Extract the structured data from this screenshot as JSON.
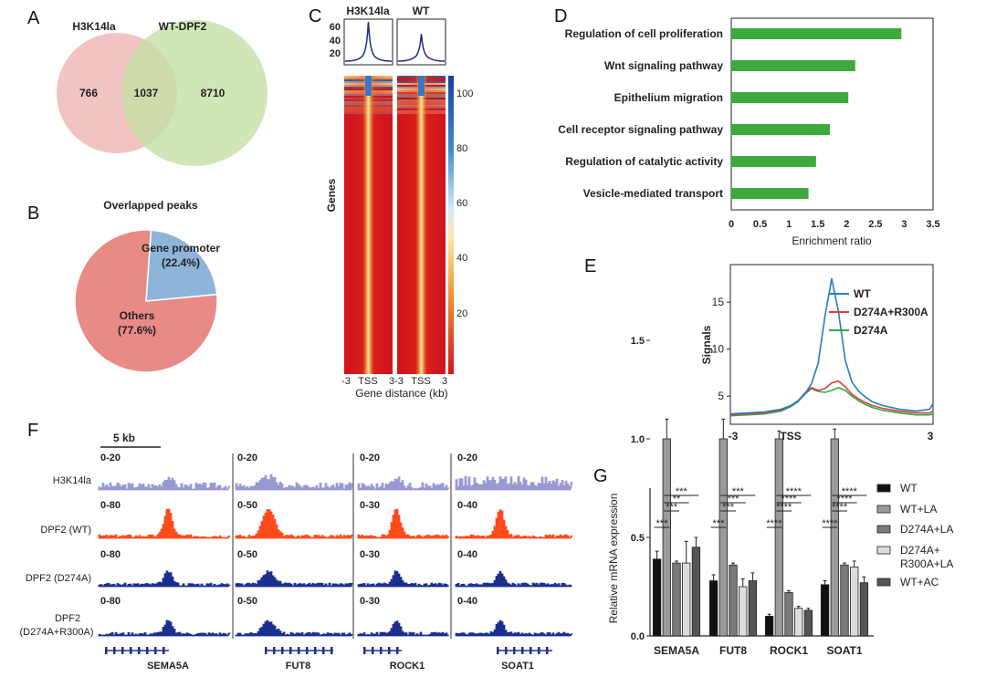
{
  "panels": {
    "A": "A",
    "B": "B",
    "C": "C",
    "D": "D",
    "E": "E",
    "F": "F",
    "G": "G"
  },
  "colors": {
    "venn_h3k14la": "#f0b8b8",
    "venn_wtdpf2": "#c5e0a5",
    "pie_promoter": "#8fb4d9",
    "pie_others": "#e88a86",
    "d_bar": "#3caa3c",
    "e_wt": "#1f7fc4",
    "e_d274a_r300a": "#e23b3b",
    "e_d274a": "#2ea84a",
    "f_h3k14la": "#9a98d2",
    "f_dpf2_wt": "#ff4a1c",
    "f_dpf2_mut": "#1a2f8f"
  },
  "chart_data": [
    {
      "panel": "A",
      "type": "venn",
      "sets": [
        "H3K14la",
        "WT-DPF2"
      ],
      "only_a": "766",
      "overlap": "1037",
      "only_b": "8710"
    },
    {
      "panel": "B",
      "type": "pie",
      "title": "Overlapped peaks",
      "slices": [
        {
          "label": "Gene promoter",
          "pct_label": "(22.4%)",
          "value": 22.4
        },
        {
          "label": "Others",
          "pct_label": "(77.6%)",
          "value": 77.6
        }
      ]
    },
    {
      "panel": "C",
      "type": "heatmap",
      "columns": [
        "H3K14la",
        "WT"
      ],
      "profile_yticks": [
        "60",
        "40",
        "20"
      ],
      "ylabel": "Genes",
      "xticks": [
        "-3",
        "TSS",
        "3"
      ],
      "xlabel": "Gene distance (kb)",
      "colorbar_ticks": [
        "100",
        "80",
        "60",
        "40",
        "20"
      ],
      "profile_peaks": [
        60,
        43
      ]
    },
    {
      "panel": "D",
      "type": "bar",
      "orientation": "horizontal",
      "categories": [
        "Regulation of cell proliferation",
        "Wnt signaling pathway",
        "Epithelium migration",
        "Cell receptor signaling pathway",
        "Regulation of catalytic activity",
        "Vesicle-mediated transport"
      ],
      "values": [
        2.95,
        2.15,
        2.03,
        1.71,
        1.47,
        1.34
      ],
      "xlabel": "Enrichment ratio",
      "xlim": [
        0,
        3.5
      ],
      "xticks": [
        "0",
        "0.5",
        "1",
        "1.5",
        "2",
        "2.5",
        "3",
        "3.5"
      ]
    },
    {
      "panel": "E",
      "type": "line",
      "ylabel": "Signals",
      "xticks": [
        "-3",
        "TSS",
        "3"
      ],
      "yticks": [
        "15",
        "10",
        "5"
      ],
      "ylim": [
        2,
        19
      ],
      "xlim": [
        -3,
        3
      ],
      "legend": "top-right",
      "x": [
        -3,
        -2.5,
        -2,
        -1.5,
        -1.2,
        -1,
        -0.8,
        -0.6,
        -0.4,
        -0.2,
        0,
        0.2,
        0.4,
        0.6,
        0.8,
        1,
        1.2,
        1.5,
        2,
        2.5,
        2.9,
        3
      ],
      "series": [
        {
          "name": "WT",
          "values": [
            3.1,
            3.2,
            3.3,
            3.6,
            4.0,
            4.5,
            5.2,
            6.3,
            8.5,
            13.5,
            17.5,
            14.0,
            8.8,
            6.5,
            5.5,
            4.9,
            4.4,
            4.0,
            3.6,
            3.4,
            3.6,
            4.2
          ]
        },
        {
          "name": "D274A+R300A",
          "values": [
            3.0,
            3.1,
            3.2,
            3.5,
            4.0,
            4.5,
            5.3,
            5.9,
            5.6,
            5.8,
            6.4,
            6.6,
            6.0,
            5.2,
            4.7,
            4.3,
            4.0,
            3.7,
            3.4,
            3.2,
            3.2,
            3.4
          ]
        },
        {
          "name": "D274A",
          "values": [
            2.9,
            3.0,
            3.1,
            3.4,
            3.9,
            4.4,
            5.2,
            5.8,
            5.5,
            5.4,
            5.6,
            5.9,
            5.6,
            5.0,
            4.5,
            4.1,
            3.8,
            3.5,
            3.2,
            3.0,
            3.0,
            3.1
          ]
        }
      ]
    },
    {
      "panel": "F",
      "type": "genome-tracks",
      "scale_bar": "5 kb",
      "tracks": [
        "H3K14la",
        "DPF2 (WT)",
        "DPF2 (D274A)",
        "DPF2",
        "(D274A+R300A)"
      ],
      "genes": [
        "SEMA5A",
        "FUT8",
        "ROCK1",
        "SOAT1"
      ],
      "ranges": [
        [
          "0-20",
          "0-80",
          "0-80",
          "0-80"
        ],
        [
          "0-20",
          "0-50",
          "0-50",
          "0-50"
        ],
        [
          "0-20",
          "0-30",
          "0-30",
          "0-30"
        ],
        [
          "0-20",
          "0-40",
          "0-40",
          "0-40"
        ]
      ]
    },
    {
      "panel": "G",
      "type": "bar",
      "ylabel": "Relative mRNA expression",
      "ylim": [
        0,
        1.5
      ],
      "categories": [
        "SEMA5A",
        "FUT8",
        "ROCK1",
        "SOAT1"
      ],
      "legend": "right",
      "series": [
        {
          "name": "WT",
          "color": "#111111",
          "values": [
            0.39,
            0.28,
            0.1,
            0.26
          ],
          "errors": [
            0.04,
            0.03,
            0.01,
            0.02
          ]
        },
        {
          "name": "WT+LA",
          "color": "#9a9a9a",
          "values": [
            1.0,
            1.0,
            1.0,
            1.0
          ],
          "errors": [
            0.1,
            0.1,
            0.04,
            0.05
          ]
        },
        {
          "name": "D274A+LA",
          "color": "#7a7a7a",
          "values": [
            0.37,
            0.36,
            0.22,
            0.36
          ],
          "errors": [
            0.01,
            0.01,
            0.01,
            0.01
          ]
        },
        {
          "name": "D274A+",
          "name2": "R300A+LA",
          "color": "#dcdcdc",
          "values": [
            0.37,
            0.25,
            0.14,
            0.35
          ],
          "errors": [
            0.11,
            0.04,
            0.01,
            0.03
          ]
        },
        {
          "name": "WT+AC",
          "color": "#555555",
          "values": [
            0.45,
            0.28,
            0.13,
            0.27
          ],
          "errors": [
            0.05,
            0.04,
            0.01,
            0.03
          ]
        }
      ],
      "significance": [
        [
          "***",
          "***",
          "**",
          "***"
        ],
        [
          "***",
          "***",
          "***",
          "***"
        ],
        [
          "****",
          "****",
          "****",
          "****"
        ],
        [
          "****",
          "****",
          "****",
          "****"
        ]
      ]
    }
  ]
}
